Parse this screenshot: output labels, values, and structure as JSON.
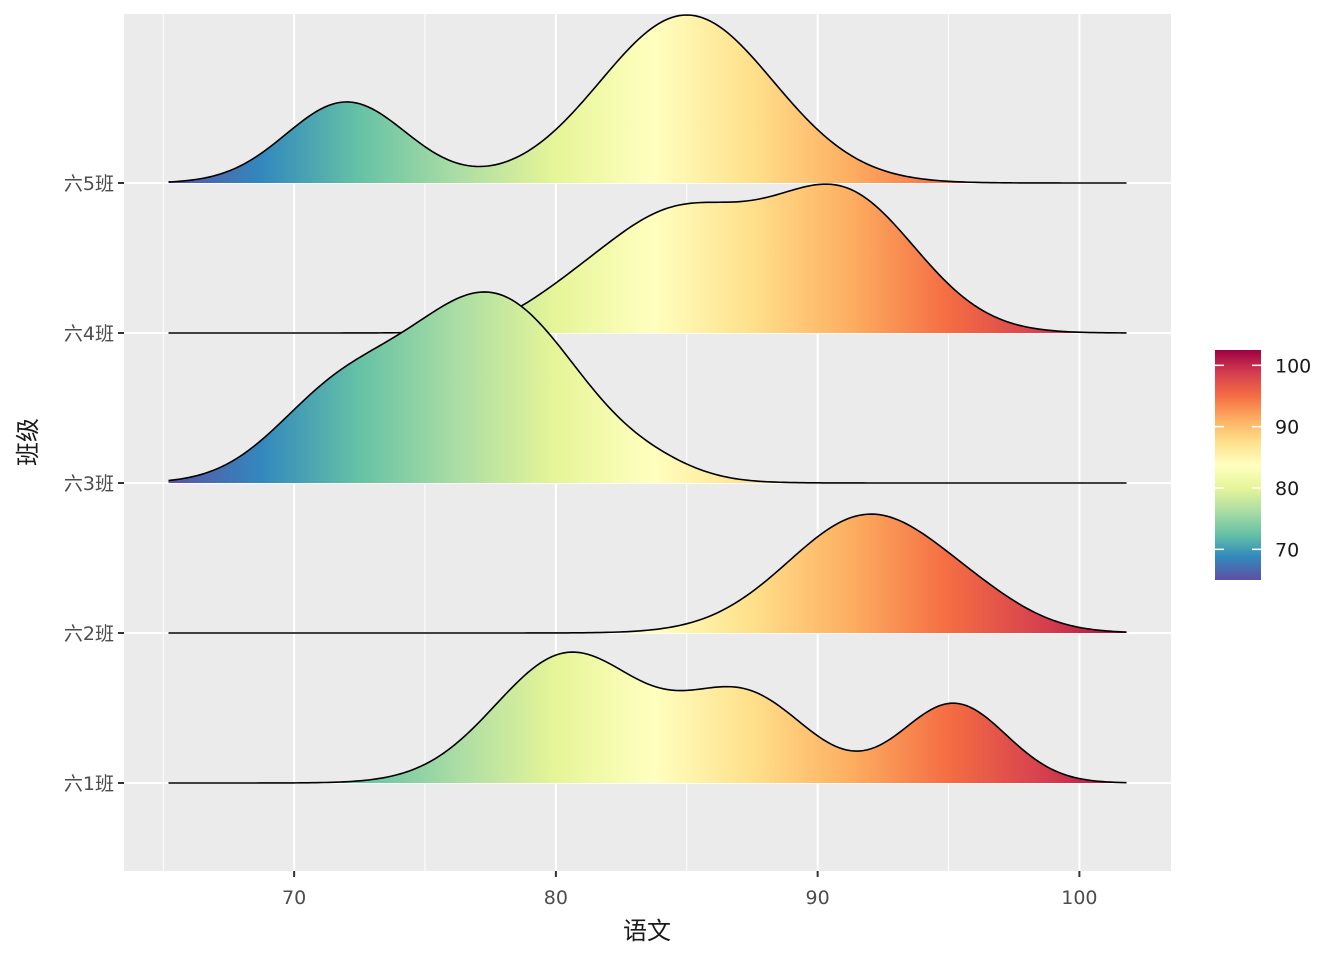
{
  "chart_data": {
    "type": "ridgeline",
    "xlabel": "语文",
    "ylabel": "班级",
    "xlim": [
      63.5,
      103.5
    ],
    "x_ticks": [
      70,
      80,
      90,
      100
    ],
    "x_tick_labels": [
      "70",
      "80",
      "90",
      "100"
    ],
    "x_domain": [
      65.2,
      101.8
    ],
    "categories": [
      "六1班",
      "六2班",
      "六3班",
      "六4班",
      "六5班"
    ],
    "grid": true,
    "colorbar": {
      "position": "right",
      "range": [
        65,
        102.5
      ],
      "ticks": [
        70,
        80,
        90,
        100
      ],
      "tick_labels": [
        "70",
        "80",
        "90",
        "100"
      ],
      "palette": [
        "#5e4fa2",
        "#3288bd",
        "#66c2a5",
        "#abdda4",
        "#e6f598",
        "#ffffbf",
        "#fee08b",
        "#fdae61",
        "#f46d43",
        "#d53e4f",
        "#9e0142"
      ]
    },
    "series": [
      {
        "name": "六1班",
        "components": [
          {
            "mu": 80.5,
            "sigma": 2.8,
            "h": 0.86
          },
          {
            "mu": 87.2,
            "sigma": 2.4,
            "h": 0.58
          },
          {
            "mu": 95.2,
            "sigma": 2.0,
            "h": 0.53
          }
        ]
      },
      {
        "name": "六2班",
        "components": [
          {
            "mu": 92.0,
            "sigma": 3.1,
            "h": 0.79
          },
          {
            "mu": 96.5,
            "sigma": 1.8,
            "h": 0.06
          }
        ]
      },
      {
        "name": "六3班",
        "components": [
          {
            "mu": 77.5,
            "sigma": 3.3,
            "h": 1.25
          },
          {
            "mu": 71.5,
            "sigma": 2.4,
            "h": 0.48
          },
          {
            "mu": 84.0,
            "sigma": 1.5,
            "h": 0.04
          }
        ]
      },
      {
        "name": "六4班",
        "components": [
          {
            "mu": 84.5,
            "sigma": 3.0,
            "h": 0.78
          },
          {
            "mu": 91.0,
            "sigma": 2.8,
            "h": 0.9
          },
          {
            "mu": 80.0,
            "sigma": 1.8,
            "h": 0.08
          }
        ]
      },
      {
        "name": "六5班",
        "components": [
          {
            "mu": 72.0,
            "sigma": 2.3,
            "h": 0.54
          },
          {
            "mu": 85.0,
            "sigma": 3.3,
            "h": 1.12
          }
        ]
      }
    ]
  }
}
